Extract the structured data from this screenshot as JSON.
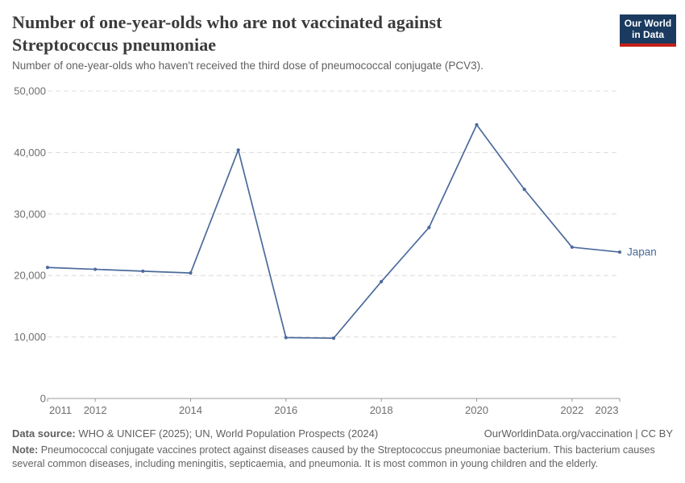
{
  "header": {
    "title": "Number of one-year-olds who are not vaccinated against Streptococcus pneumoniae",
    "subtitle": "Number of one-year-olds who haven't received the third dose of pneumococcal conjugate (PCV3).",
    "logo": {
      "line1": "Our World",
      "line2": "in Data",
      "bg_color": "#1a3a5f",
      "accent_color": "#c4201a"
    }
  },
  "chart_data": {
    "type": "line",
    "x": [
      2011,
      2012,
      2013,
      2014,
      2015,
      2016,
      2017,
      2018,
      2019,
      2020,
      2021,
      2022,
      2023
    ],
    "series": [
      {
        "name": "Japan",
        "color": "#4C6A9C",
        "values": [
          21300,
          21000,
          20700,
          20400,
          40400,
          9900,
          9800,
          19000,
          27800,
          44500,
          34000,
          24600,
          23800
        ]
      }
    ],
    "title": "Number of one-year-olds who are not vaccinated against Streptococcus pneumoniae",
    "xlabel": "",
    "ylabel": "",
    "xlim": [
      2011,
      2023
    ],
    "ylim": [
      0,
      50000
    ],
    "x_ticks": [
      2011,
      2012,
      2014,
      2016,
      2018,
      2020,
      2022,
      2023
    ],
    "y_ticks": [
      0,
      10000,
      20000,
      30000,
      40000,
      50000
    ],
    "grid": "horizontal-dashed",
    "legend_position": "end-of-line-label",
    "end_label": "Japan",
    "colors": {
      "grid": "#dcdcdc",
      "axis": "#989898",
      "tick_text": "#6e6e6e"
    }
  },
  "footer": {
    "source_label": "Data source:",
    "source_text": "WHO & UNICEF (2025); UN, World Population Prospects (2024)",
    "license_text": "OurWorldinData.org/vaccination | CC BY",
    "note_label": "Note:",
    "note_text": "Pneumococcal conjugate vaccines protect against diseases caused by the Streptococcus pneumoniae bacterium. This bacterium causes several common diseases, including meningitis, septicaemia, and pneumonia. It is most common in young children and the elderly."
  }
}
